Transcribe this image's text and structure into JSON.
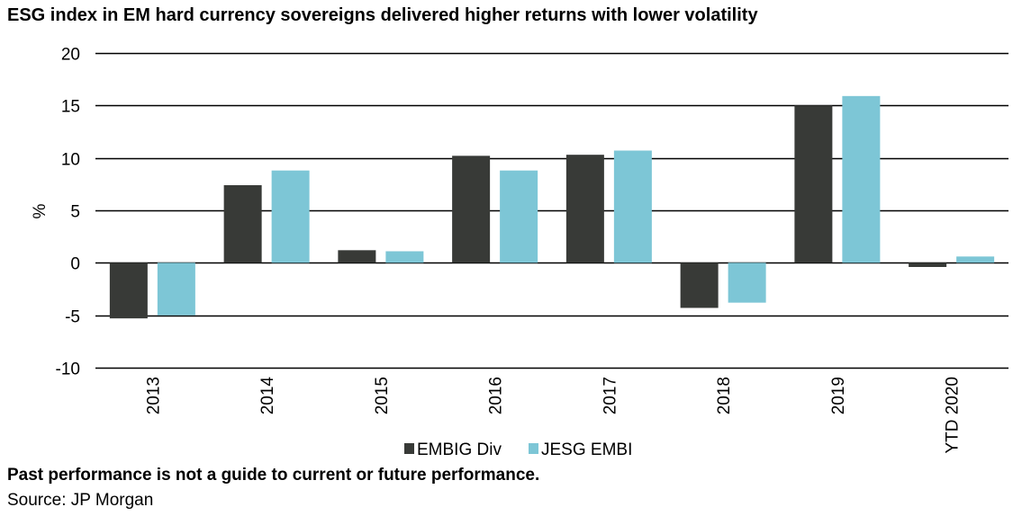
{
  "title": "ESG index in EM hard currency sovereigns delivered higher returns with lower volatility",
  "disclaimer": "Past performance is not a guide to current or future performance.",
  "source": "Source: JP Morgan",
  "colors": {
    "embig": "#383A37",
    "jesg": "#7DC6D6",
    "grid": "#000000"
  },
  "chart_data": {
    "type": "bar",
    "categories": [
      "2013",
      "2014",
      "2015",
      "2016",
      "2017",
      "2018",
      "2019",
      "YTD 2020"
    ],
    "series": [
      {
        "name": "EMBIG Div",
        "values": [
          -5.3,
          7.4,
          1.2,
          10.2,
          10.3,
          -4.3,
          15.0,
          -0.4
        ]
      },
      {
        "name": "JESG EMBI",
        "values": [
          -5.0,
          8.8,
          1.1,
          8.8,
          10.7,
          -3.8,
          15.9,
          0.6
        ]
      }
    ],
    "ylabel": "%",
    "xlabel": "",
    "ylim": [
      -10,
      20
    ],
    "yticks": [
      20,
      15,
      10,
      5,
      0,
      -5,
      -10
    ],
    "grid": true,
    "legend": "bottom"
  }
}
